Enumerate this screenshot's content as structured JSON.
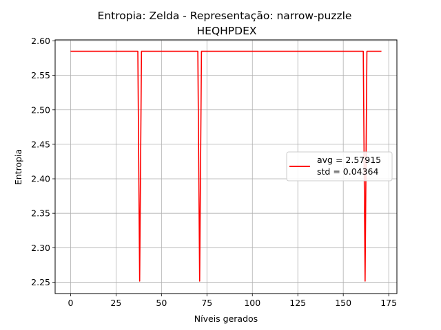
{
  "chart_data": {
    "type": "line",
    "title": "Entropia: Zelda - Representação: narrow-puzzle",
    "subtitle": "HEQHPDEX",
    "xlabel": "Níveis gerados",
    "ylabel": "Entropia",
    "xlim": [
      -8.5,
      179.5
    ],
    "ylim": [
      2.2335,
      2.6015
    ],
    "xticks": [
      0,
      25,
      50,
      75,
      100,
      125,
      150,
      175
    ],
    "yticks": [
      2.25,
      2.3,
      2.35,
      2.4,
      2.45,
      2.5,
      2.55,
      2.6
    ],
    "xtick_labels": [
      "0",
      "25",
      "50",
      "75",
      "100",
      "125",
      "150",
      "175"
    ],
    "ytick_labels": [
      "2.25",
      "2.30",
      "2.35",
      "2.40",
      "2.45",
      "2.50",
      "2.55",
      "2.60"
    ],
    "grid": true,
    "legend_position": "center-right",
    "color": "#ff0000",
    "series": [
      {
        "legend_lines": [
          "avg = 2.57915",
          "std = 0.04364"
        ],
        "baseline": 2.585,
        "dip_value": 2.2516,
        "dips_at": [
          38,
          71,
          162
        ],
        "x_start": 0,
        "x_end": 171
      }
    ]
  }
}
